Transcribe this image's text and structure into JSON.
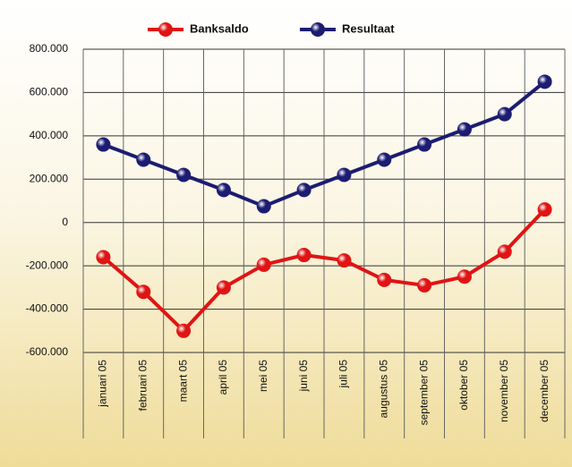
{
  "chart_data": {
    "type": "line",
    "categories": [
      "januari 05",
      "februari 05",
      "maart 05",
      "april 05",
      "mei 05",
      "juni 05",
      "juli 05",
      "augustus 05",
      "september 05",
      "oktober 05",
      "november 05",
      "december 05"
    ],
    "series": [
      {
        "name": "Banksaldo",
        "color": "#e01414",
        "values": [
          -160000,
          -320000,
          -500000,
          -300000,
          -195000,
          -150000,
          -175000,
          -265000,
          -290000,
          -250000,
          -135000,
          60000
        ]
      },
      {
        "name": "Resultaat",
        "color": "#1c1c72",
        "values": [
          360000,
          290000,
          220000,
          150000,
          75000,
          150000,
          220000,
          290000,
          360000,
          430000,
          500000,
          650000
        ]
      }
    ],
    "ylim": [
      -600000,
      800000
    ],
    "yticks": [
      {
        "value": -600000,
        "label": "-600.000"
      },
      {
        "value": -400000,
        "label": "-400.000"
      },
      {
        "value": -200000,
        "label": "-200.000"
      },
      0,
      {
        "value": 200000,
        "label": "200.000"
      },
      {
        "value": 400000,
        "label": "400.000"
      },
      {
        "value": 600000,
        "label": "600.000"
      },
      {
        "value": 800000,
        "label": "800.000"
      }
    ],
    "grid": true,
    "legend": "top"
  }
}
